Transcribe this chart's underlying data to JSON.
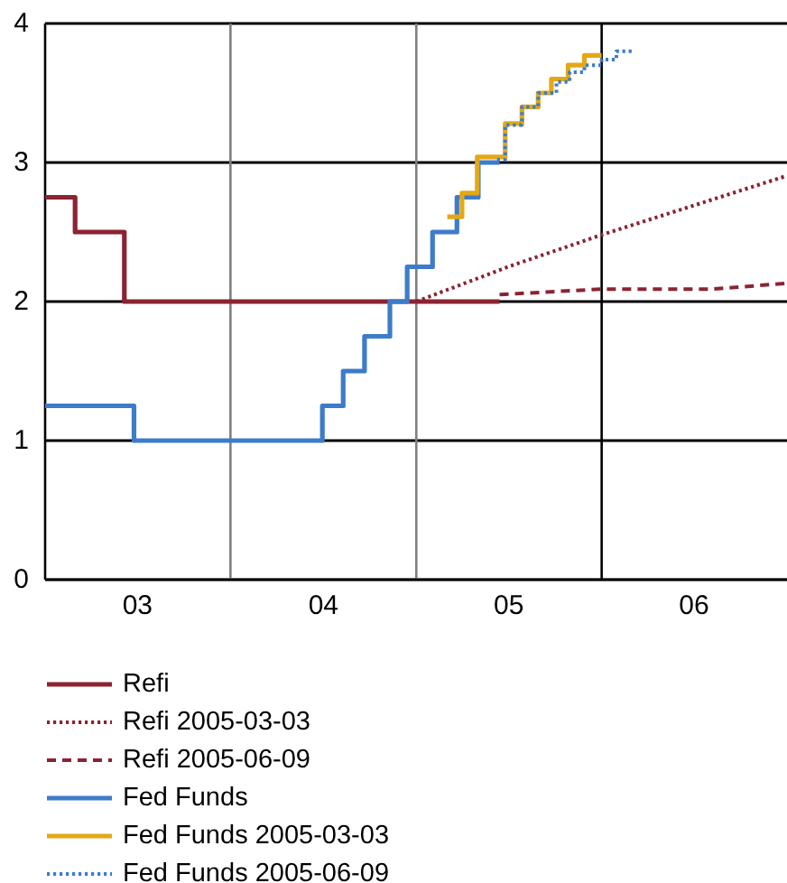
{
  "chart_data": {
    "type": "step",
    "xlim": [
      "2003-01-01",
      "2007-01-01"
    ],
    "ylim": [
      0,
      4
    ],
    "xticks": [
      {
        "value": "2003-07-02",
        "label": "03"
      },
      {
        "value": "2004-07-02",
        "label": "04"
      },
      {
        "value": "2005-07-02",
        "label": "05"
      },
      {
        "value": "2006-07-02",
        "label": "06"
      }
    ],
    "yticks": [
      0,
      1,
      2,
      3,
      4
    ],
    "grid": "y",
    "legend": "bottom",
    "ref_lines": [
      {
        "axis": "x",
        "value": "2004-01-01",
        "color": "#7f7f7f"
      },
      {
        "axis": "x",
        "value": "2005-01-01",
        "color": "#7f7f7f"
      },
      {
        "axis": "x",
        "value": "2006-01-01",
        "color": "#000000"
      }
    ],
    "series": [
      {
        "name": "Refi",
        "color": "#8b2332",
        "line_style": "solid",
        "x": [
          "2003-01-01",
          "2003-03-01",
          "2003-06-06",
          "2005-06-14"
        ],
        "values": [
          2.75,
          2.5,
          2.0,
          2.0
        ]
      },
      {
        "name": "Refi 2005-03-03",
        "type": "line",
        "color": "#8b2332",
        "line_style": "dotted",
        "x": [
          "2005-01-01",
          "2005-07-01",
          "2006-01-01",
          "2006-12-28"
        ],
        "values": [
          2.0,
          2.25,
          2.48,
          2.9
        ]
      },
      {
        "name": "Refi 2005-06-09",
        "type": "line",
        "color": "#8b2332",
        "line_style": "dashed",
        "x": [
          "2005-06-14",
          "2006-01-01",
          "2006-08-08",
          "2006-12-28"
        ],
        "values": [
          2.05,
          2.09,
          2.09,
          2.13
        ]
      },
      {
        "name": "Fed Funds",
        "color": "#3d7cc9",
        "line_style": "solid",
        "x": [
          "2003-01-01",
          "2003-06-25",
          "2004-06-30",
          "2004-08-10",
          "2004-09-21",
          "2004-11-10",
          "2004-12-14",
          "2005-02-02",
          "2005-03-22",
          "2005-05-03",
          "2005-06-14"
        ],
        "values": [
          1.25,
          1.0,
          1.25,
          1.5,
          1.75,
          2.0,
          2.25,
          2.5,
          2.75,
          3.0,
          3.0
        ]
      },
      {
        "name": "Fed Funds 2005-03-03",
        "color": "#e3a817",
        "line_style": "solid",
        "x": [
          "2005-03-03",
          "2005-04-01",
          "2005-05-01",
          "2005-06-25",
          "2005-07-28",
          "2005-08-29",
          "2005-09-24",
          "2005-10-27",
          "2005-11-28",
          "2006-01-01"
        ],
        "values": [
          2.61,
          2.78,
          3.04,
          3.28,
          3.4,
          3.5,
          3.6,
          3.7,
          3.77,
          3.77
        ]
      },
      {
        "name": "Fed Funds 2005-06-09",
        "color": "#3d7cc9",
        "line_style": "dotted",
        "x": [
          "2005-06-09",
          "2005-06-25",
          "2005-07-28",
          "2005-08-29",
          "2005-10-04",
          "2005-10-30",
          "2005-11-28",
          "2006-01-01",
          "2006-01-30",
          "2006-03-01"
        ],
        "values": [
          3.02,
          3.27,
          3.4,
          3.5,
          3.58,
          3.65,
          3.7,
          3.74,
          3.8,
          3.8
        ]
      }
    ]
  }
}
